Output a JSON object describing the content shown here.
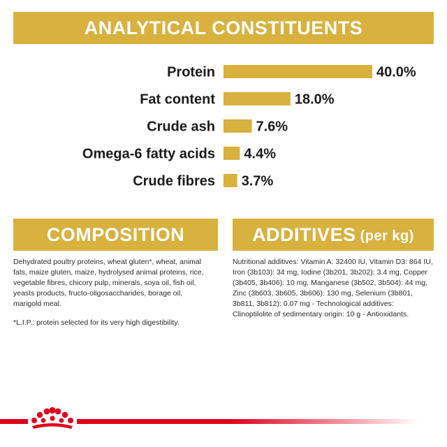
{
  "analytical": {
    "title": "ANALYTICAL CONSTITUENTS"
  },
  "chart_data": {
    "type": "bar",
    "orientation": "horizontal",
    "categories": [
      "Protein",
      "Fat content",
      "Crude ash",
      "Omega-6 fatty acids",
      "Crude fibres"
    ],
    "values": [
      40.0,
      18.0,
      7.6,
      4.4,
      3.7
    ],
    "value_labels": [
      "40.0%",
      "18.0%",
      "7.6%",
      "4.4%",
      "3.7%"
    ],
    "title": "ANALYTICAL CONSTITUENTS",
    "xlabel": "",
    "ylabel": "",
    "xlim": [
      0,
      40
    ],
    "grid": false,
    "bar_color": "#d8b13e"
  },
  "composition": {
    "title": "COMPOSITION",
    "text": "Dehydrated poultry proteins, wheat gluten*, wheat, animal fats, maize gluten, maize, hydrolysed animal proteins, rice, vegetable fibres, chicory pulp, minerals, soya oil, fish oil, yeasts products, fructo-oligosaccharides, borage oil, marigold meal.",
    "note": "*L.I.P.: protein selected for its very high digestibility."
  },
  "additives": {
    "title": "ADDITIVES",
    "title_suffix": "(per kg)",
    "text": "Nutritional additives: Vitamin A: 32400 IU, Vitamin D3: 864 IU, Iron (3b103): 34 mg, Iodine (3b201, 3b202): 3.4 mg, Copper (3b405, 3b406): 10 mg, Manganese (3b502, 3b504): 44 mg, Zinc (3b603, 3b605, 3b606): 130 mg, Selenium (3b801, 3b811, 3b812): 0.07 mg - Technological additives: Clinoptilolite of sedimentary origin: 10 g - Antioxidants."
  },
  "brand": {
    "logo_icon": "royal-canin-crown-icon",
    "accent_color": "#e2001a",
    "gold_color": "#d8b13e"
  }
}
